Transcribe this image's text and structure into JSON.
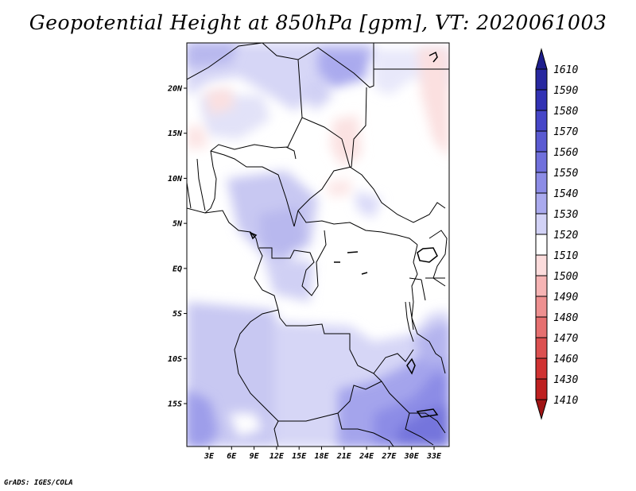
{
  "title": "Geopotential Height at 850hPa [gpm], VT: 2020061003",
  "credit": "GrADS: IGES/COLA",
  "map": {
    "lat_labels": [
      {
        "label": "20N",
        "lat": 20
      },
      {
        "label": "15N",
        "lat": 15
      },
      {
        "label": "10N",
        "lat": 10
      },
      {
        "label": "5N",
        "lat": 5
      },
      {
        "label": "EQ",
        "lat": 0
      },
      {
        "label": "5S",
        "lat": -5
      },
      {
        "label": "10S",
        "lat": -10
      },
      {
        "label": "15S",
        "lat": -15
      }
    ],
    "lon_labels": [
      {
        "label": "3E",
        "lon": 3
      },
      {
        "label": "6E",
        "lon": 6
      },
      {
        "label": "9E",
        "lon": 9
      },
      {
        "label": "12E",
        "lon": 12
      },
      {
        "label": "15E",
        "lon": 15
      },
      {
        "label": "18E",
        "lon": 18
      },
      {
        "label": "21E",
        "lon": 21
      },
      {
        "label": "24E",
        "lon": 24
      },
      {
        "label": "27E",
        "lon": 27
      },
      {
        "label": "30E",
        "lon": 30
      },
      {
        "label": "33E",
        "lon": 33
      }
    ]
  },
  "colorbar": {
    "levels": [
      {
        "label": "1610",
        "color": "#1e1e8c"
      },
      {
        "label": "1590",
        "color": "#2828a0"
      },
      {
        "label": "1580",
        "color": "#3232b4"
      },
      {
        "label": "1570",
        "color": "#4646c8"
      },
      {
        "label": "1560",
        "color": "#5a5ad2"
      },
      {
        "label": "1550",
        "color": "#7070dc"
      },
      {
        "label": "1540",
        "color": "#8c8ce6"
      },
      {
        "label": "1530",
        "color": "#aaaaee"
      },
      {
        "label": "1520",
        "color": "#d2d2f6"
      },
      {
        "label": "1510",
        "color": "#ffffff"
      },
      {
        "label": "1500",
        "color": "#fcdcdc"
      },
      {
        "label": "1490",
        "color": "#f6b4b4"
      },
      {
        "label": "1480",
        "color": "#ee9090"
      },
      {
        "label": "1470",
        "color": "#e67070"
      },
      {
        "label": "1460",
        "color": "#dc5050"
      },
      {
        "label": "1430",
        "color": "#d03232"
      },
      {
        "label": "1410",
        "color": "#be2020"
      }
    ],
    "bottom_color": "#a01414"
  }
}
